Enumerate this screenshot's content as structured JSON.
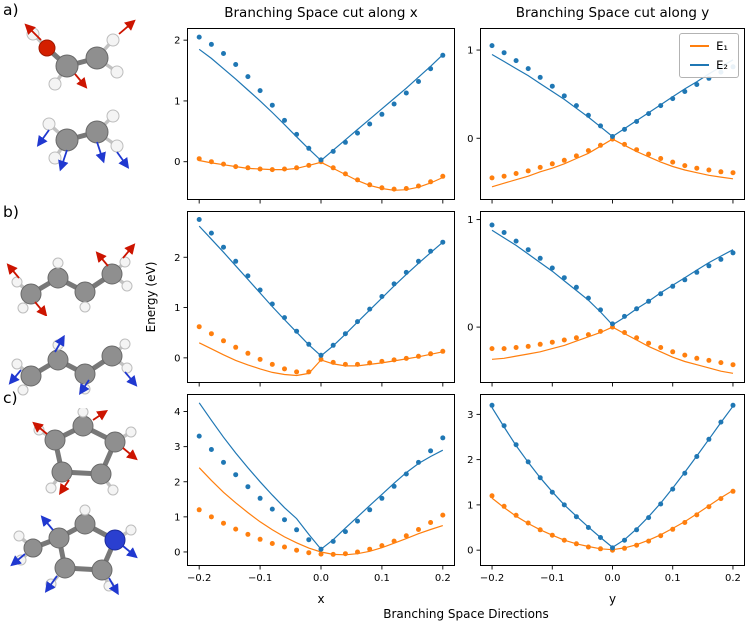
{
  "figure": {
    "panel_labels": [
      "a)",
      "b)",
      "c)"
    ]
  },
  "chart_data": {
    "type": "line",
    "col_titles": [
      "Branching Space cut along x",
      "Branching Space cut along y"
    ],
    "ylabel": "Energy (eV)",
    "xlabel": "Branching Space Directions",
    "x_axis_sublabels": [
      "x",
      "y"
    ],
    "legend": {
      "labels": [
        "E₁",
        "E₂"
      ],
      "colors": [
        "#ff7f0e",
        "#1f77b4"
      ],
      "position": "upper right of top-right panel"
    },
    "colors": {
      "E1": "#ff7f0e",
      "E2": "#1f77b4"
    },
    "xlim": [
      -0.22,
      0.22
    ],
    "xticks": [
      -0.2,
      -0.1,
      0,
      0.1,
      0.2
    ],
    "xtick_labels": [
      "−0.2",
      "−0.1",
      "0.0",
      "0.1",
      "0.2"
    ],
    "x": [
      -0.2,
      -0.18,
      -0.16,
      -0.14,
      -0.12,
      -0.1,
      -0.08,
      -0.06,
      -0.04,
      -0.02,
      0,
      0.02,
      0.04,
      0.06,
      0.08,
      0.1,
      0.12,
      0.14,
      0.16,
      0.18,
      0.2
    ],
    "plots": [
      {
        "id": "ax",
        "panel": "a",
        "cut": "x",
        "ylim": [
          -0.63,
          2.2
        ],
        "yticks": [
          0,
          1,
          2
        ],
        "show_xticklabels": false,
        "series": [
          {
            "name": "E1",
            "dots": [
              0.05,
              0.0,
              -0.04,
              -0.08,
              -0.1,
              -0.12,
              -0.13,
              -0.12,
              -0.1,
              -0.06,
              0.0,
              -0.1,
              -0.2,
              -0.3,
              -0.38,
              -0.43,
              -0.45,
              -0.44,
              -0.4,
              -0.33,
              -0.24
            ],
            "line": [
              0.02,
              -0.02,
              -0.05,
              -0.08,
              -0.11,
              -0.12,
              -0.13,
              -0.13,
              -0.11,
              -0.06,
              -0.01,
              -0.11,
              -0.21,
              -0.31,
              -0.39,
              -0.44,
              -0.47,
              -0.46,
              -0.42,
              -0.35,
              -0.26
            ]
          },
          {
            "name": "E2",
            "dots": [
              2.05,
              1.93,
              1.78,
              1.6,
              1.4,
              1.17,
              0.93,
              0.68,
              0.45,
              0.22,
              0.03,
              0.17,
              0.32,
              0.47,
              0.62,
              0.78,
              0.95,
              1.13,
              1.32,
              1.53,
              1.75
            ],
            "line": [
              1.85,
              1.7,
              1.53,
              1.36,
              1.18,
              1.0,
              0.81,
              0.61,
              0.41,
              0.21,
              0.02,
              0.19,
              0.36,
              0.53,
              0.7,
              0.87,
              1.04,
              1.21,
              1.39,
              1.57,
              1.76
            ]
          }
        ]
      },
      {
        "id": "ay",
        "panel": "a",
        "cut": "y",
        "ylim": [
          -0.7,
          1.25
        ],
        "yticks": [
          0,
          1
        ],
        "show_xticklabels": false,
        "series": [
          {
            "name": "E1",
            "dots": [
              -0.45,
              -0.43,
              -0.4,
              -0.37,
              -0.33,
              -0.29,
              -0.25,
              -0.2,
              -0.14,
              -0.08,
              -0.01,
              -0.07,
              -0.13,
              -0.18,
              -0.23,
              -0.27,
              -0.31,
              -0.34,
              -0.36,
              -0.38,
              -0.39
            ],
            "line": [
              -0.55,
              -0.51,
              -0.47,
              -0.43,
              -0.38,
              -0.34,
              -0.29,
              -0.23,
              -0.17,
              -0.09,
              -0.01,
              -0.08,
              -0.15,
              -0.21,
              -0.27,
              -0.32,
              -0.36,
              -0.39,
              -0.42,
              -0.44,
              -0.46
            ]
          },
          {
            "name": "E2",
            "dots": [
              1.05,
              0.97,
              0.88,
              0.79,
              0.69,
              0.59,
              0.48,
              0.37,
              0.26,
              0.14,
              0.02,
              0.1,
              0.19,
              0.28,
              0.37,
              0.45,
              0.53,
              0.61,
              0.68,
              0.75,
              0.81
            ],
            "line": [
              0.95,
              0.87,
              0.79,
              0.71,
              0.62,
              0.53,
              0.44,
              0.34,
              0.24,
              0.13,
              0.02,
              0.11,
              0.2,
              0.29,
              0.38,
              0.47,
              0.56,
              0.64,
              0.73,
              0.81,
              0.89
            ]
          }
        ]
      },
      {
        "id": "bx",
        "panel": "b",
        "cut": "x",
        "ylim": [
          -0.5,
          2.92
        ],
        "yticks": [
          0,
          1,
          2
        ],
        "show_xticklabels": false,
        "series": [
          {
            "name": "E1",
            "dots": [
              0.62,
              0.48,
              0.34,
              0.21,
              0.09,
              -0.03,
              -0.13,
              -0.22,
              -0.28,
              -0.28,
              -0.03,
              -0.09,
              -0.13,
              -0.13,
              -0.1,
              -0.07,
              -0.04,
              -0.01,
              0.03,
              0.08,
              0.13
            ],
            "line": [
              0.3,
              0.18,
              0.06,
              -0.05,
              -0.14,
              -0.22,
              -0.29,
              -0.33,
              -0.35,
              -0.31,
              -0.04,
              -0.12,
              -0.16,
              -0.16,
              -0.13,
              -0.1,
              -0.06,
              -0.02,
              0.02,
              0.07,
              0.12
            ]
          },
          {
            "name": "E2",
            "dots": [
              2.75,
              2.48,
              2.2,
              1.92,
              1.63,
              1.35,
              1.07,
              0.8,
              0.53,
              0.27,
              0.05,
              0.25,
              0.48,
              0.72,
              0.97,
              1.22,
              1.47,
              1.7,
              1.92,
              2.12,
              2.3
            ],
            "line": [
              2.62,
              2.36,
              2.1,
              1.83,
              1.56,
              1.29,
              1.02,
              0.76,
              0.51,
              0.26,
              0.04,
              0.24,
              0.47,
              0.71,
              0.95,
              1.19,
              1.43,
              1.66,
              1.88,
              2.09,
              2.3
            ]
          }
        ]
      },
      {
        "id": "by",
        "panel": "b",
        "cut": "y",
        "ylim": [
          -0.52,
          1.08
        ],
        "yticks": [
          0,
          1
        ],
        "show_xticklabels": false,
        "series": [
          {
            "name": "E1",
            "dots": [
              -0.2,
              -0.2,
              -0.19,
              -0.18,
              -0.16,
              -0.14,
              -0.12,
              -0.1,
              -0.07,
              -0.04,
              0.0,
              -0.05,
              -0.1,
              -0.15,
              -0.19,
              -0.23,
              -0.26,
              -0.29,
              -0.31,
              -0.33,
              -0.35
            ],
            "line": [
              -0.3,
              -0.29,
              -0.27,
              -0.25,
              -0.23,
              -0.2,
              -0.17,
              -0.13,
              -0.09,
              -0.05,
              0.0,
              -0.06,
              -0.12,
              -0.18,
              -0.23,
              -0.28,
              -0.32,
              -0.35,
              -0.38,
              -0.41,
              -0.43
            ]
          },
          {
            "name": "E2",
            "dots": [
              0.95,
              0.88,
              0.8,
              0.72,
              0.64,
              0.55,
              0.46,
              0.37,
              0.27,
              0.16,
              0.03,
              0.1,
              0.17,
              0.24,
              0.31,
              0.38,
              0.44,
              0.51,
              0.57,
              0.63,
              0.69
            ],
            "line": [
              0.9,
              0.83,
              0.76,
              0.68,
              0.6,
              0.52,
              0.43,
              0.34,
              0.25,
              0.14,
              0.02,
              0.09,
              0.17,
              0.24,
              0.32,
              0.39,
              0.46,
              0.53,
              0.6,
              0.66,
              0.72
            ]
          }
        ]
      },
      {
        "id": "cx",
        "panel": "c",
        "cut": "x",
        "ylim": [
          -0.4,
          4.5
        ],
        "yticks": [
          0,
          1,
          2,
          3,
          4
        ],
        "show_xticklabels": true,
        "series": [
          {
            "name": "E1",
            "dots": [
              1.2,
              1.0,
              0.82,
              0.65,
              0.5,
              0.36,
              0.24,
              0.14,
              0.05,
              -0.02,
              -0.06,
              -0.07,
              -0.05,
              0.0,
              0.08,
              0.18,
              0.31,
              0.46,
              0.64,
              0.84,
              1.05
            ],
            "line": [
              2.4,
              2.04,
              1.7,
              1.4,
              1.12,
              0.86,
              0.63,
              0.43,
              0.26,
              0.11,
              0.0,
              -0.07,
              -0.08,
              -0.05,
              0.02,
              0.12,
              0.25,
              0.38,
              0.52,
              0.64,
              0.75
            ]
          },
          {
            "name": "E2",
            "dots": [
              3.3,
              2.92,
              2.55,
              2.2,
              1.86,
              1.53,
              1.22,
              0.92,
              0.63,
              0.35,
              0.08,
              0.3,
              0.58,
              0.88,
              1.2,
              1.53,
              1.87,
              2.22,
              2.55,
              2.88,
              3.25
            ],
            "line": [
              4.25,
              3.75,
              3.27,
              2.82,
              2.4,
              2.0,
              1.62,
              1.26,
              0.95,
              0.5,
              0.08,
              0.35,
              0.68,
              1.0,
              1.32,
              1.64,
              1.96,
              2.26,
              2.52,
              2.72,
              2.9
            ]
          }
        ]
      },
      {
        "id": "cy",
        "panel": "c",
        "cut": "y",
        "ylim": [
          -0.35,
          3.45
        ],
        "yticks": [
          0,
          1,
          2,
          3
        ],
        "show_xticklabels": true,
        "series": [
          {
            "name": "E1",
            "dots": [
              1.2,
              0.97,
              0.77,
              0.6,
              0.45,
              0.33,
              0.22,
              0.14,
              0.07,
              0.03,
              0.0,
              0.04,
              0.11,
              0.2,
              0.32,
              0.46,
              0.61,
              0.78,
              0.96,
              1.14,
              1.3
            ],
            "line": [
              1.15,
              0.94,
              0.75,
              0.59,
              0.45,
              0.33,
              0.22,
              0.14,
              0.08,
              0.03,
              0.01,
              0.05,
              0.12,
              0.22,
              0.34,
              0.48,
              0.63,
              0.8,
              0.98,
              1.16,
              1.32
            ]
          },
          {
            "name": "E2",
            "dots": [
              3.2,
              2.75,
              2.33,
              1.95,
              1.6,
              1.28,
              1.0,
              0.74,
              0.5,
              0.28,
              0.05,
              0.22,
              0.45,
              0.72,
              1.02,
              1.35,
              1.7,
              2.07,
              2.45,
              2.83,
              3.2
            ],
            "line": [
              3.15,
              2.72,
              2.31,
              1.94,
              1.6,
              1.29,
              1.0,
              0.75,
              0.51,
              0.28,
              0.06,
              0.23,
              0.47,
              0.74,
              1.04,
              1.37,
              1.72,
              2.08,
              2.45,
              2.82,
              3.18
            ]
          }
        ]
      }
    ]
  }
}
